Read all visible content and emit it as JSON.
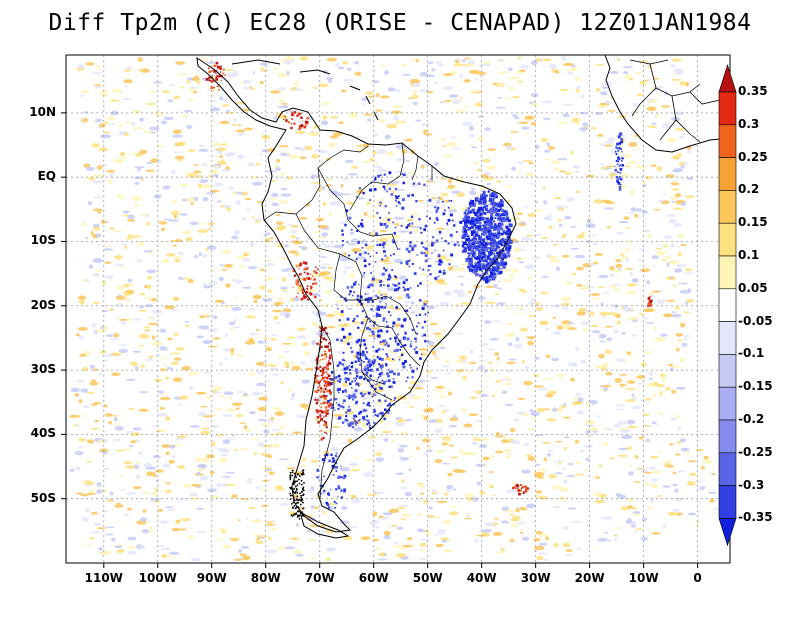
{
  "title": "Diff Tp2m (C) EC28 (ORISE - CENAPAD) 12Z01JAN1984",
  "map": {
    "lon_ticks": [
      "110W",
      "100W",
      "90W",
      "80W",
      "70W",
      "60W",
      "50W",
      "40W",
      "30W",
      "20W",
      "10W",
      "0"
    ],
    "lat_ticks": [
      "10N",
      "EQ",
      "10S",
      "20S",
      "30S",
      "40S",
      "50S"
    ],
    "lon_range": [
      -117,
      6
    ],
    "lat_range": [
      -60,
      19
    ],
    "grid": true,
    "colors": {
      "coast": "#000000",
      "grid": "#9a9a9a"
    }
  },
  "colorbar": {
    "labels": [
      "0.35",
      "0.3",
      "0.25",
      "0.2",
      "0.15",
      "0.1",
      "0.05",
      "-0.05",
      "-0.1",
      "-0.15",
      "-0.2",
      "-0.25",
      "-0.3",
      "-0.35"
    ],
    "colors": [
      "#b80f0f",
      "#e42a17",
      "#f0641e",
      "#f8a134",
      "#fbc65a",
      "#fde07f",
      "#fff4b8",
      "#ffffff",
      "#e4e6fb",
      "#c6cbf6",
      "#a8aef2",
      "#848ced",
      "#5a65e6",
      "#3140e4",
      "#1020dd"
    ]
  }
}
